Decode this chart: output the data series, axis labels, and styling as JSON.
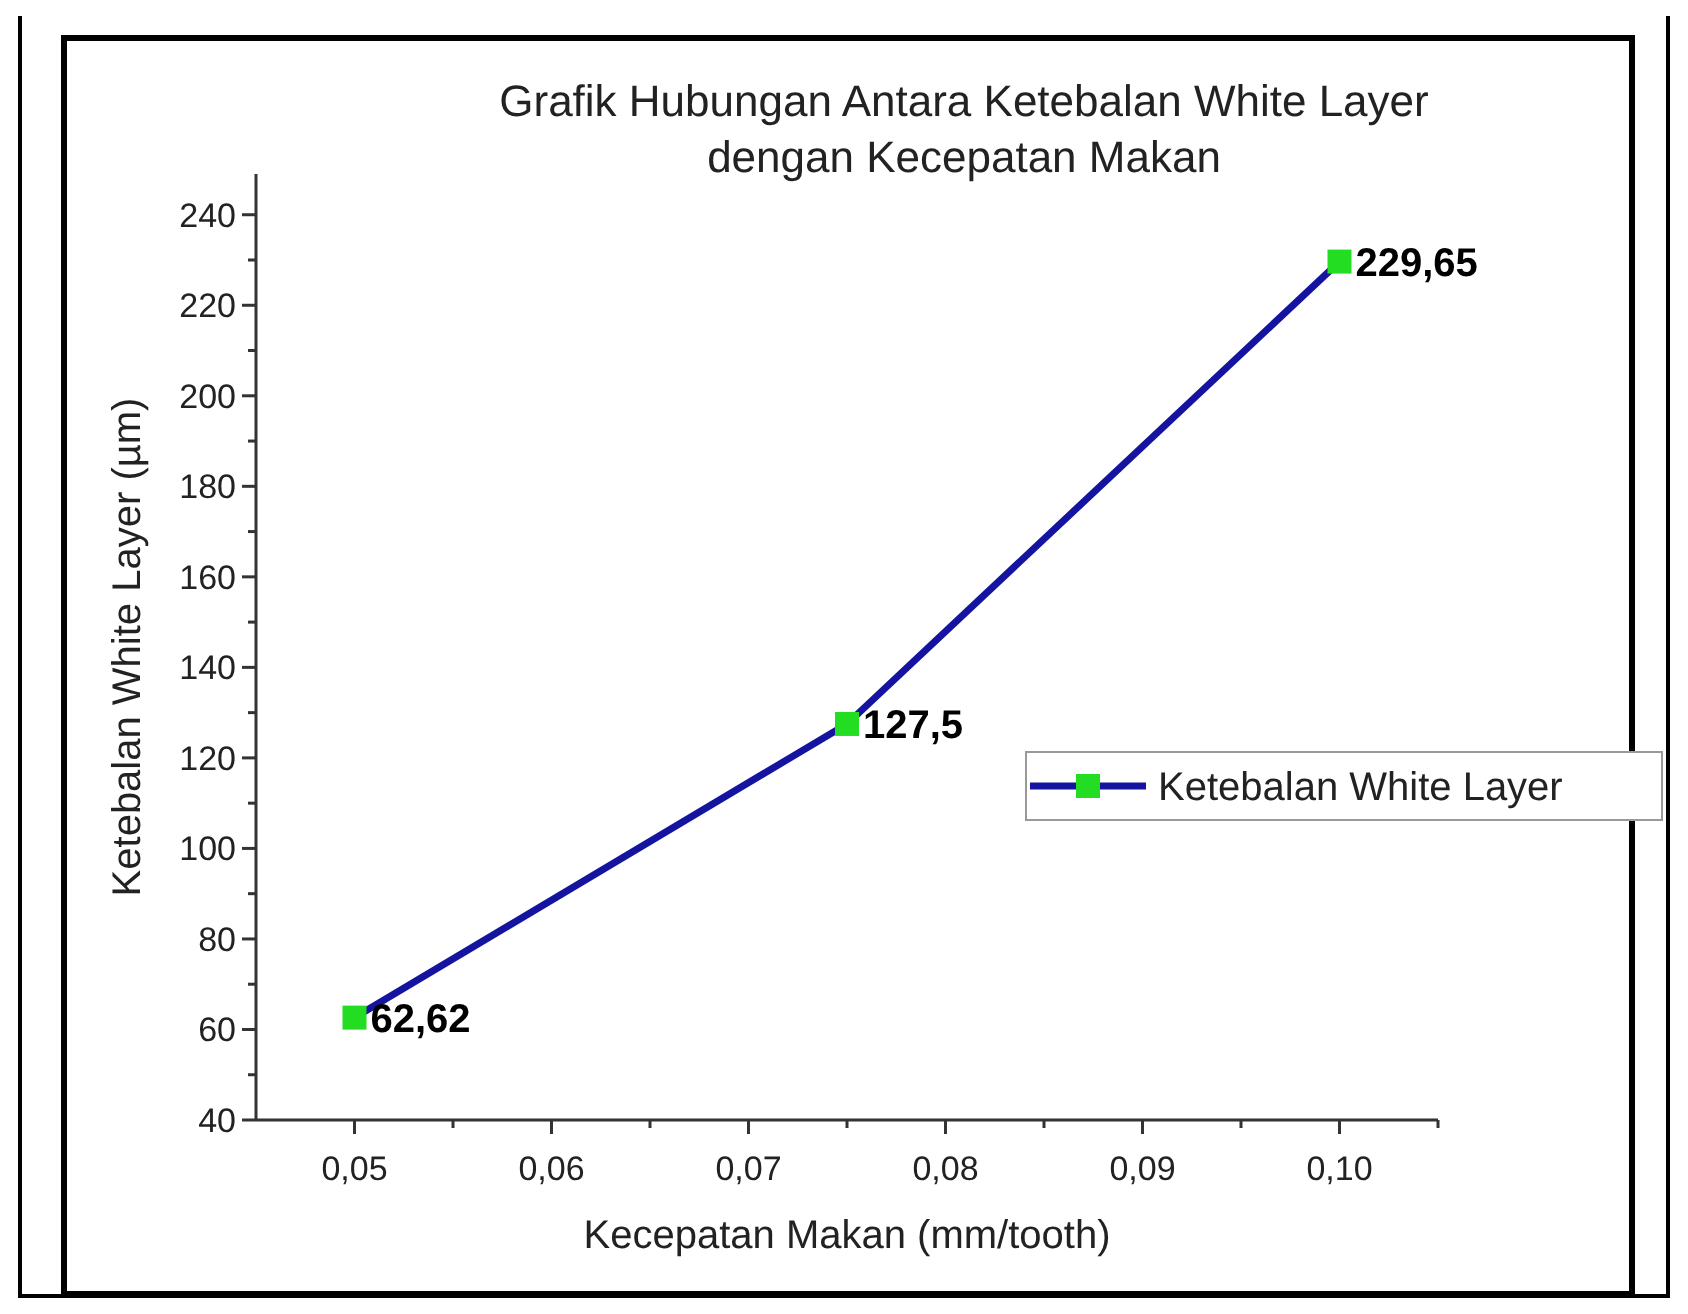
{
  "chart_data": {
    "type": "line",
    "title": "Grafik Hubungan Antara Ketebalan White Layer\ndengan Kecepatan Makan",
    "xlabel": "Kecepatan Makan (mm/tooth)",
    "ylabel": "Ketebalan White Layer (µm)",
    "x": [
      0.05,
      0.075,
      0.1
    ],
    "series": [
      {
        "name": "Ketebalan White Layer",
        "color": "#1414a0",
        "values": [
          62.62,
          127.5,
          229.65
        ],
        "value_labels": [
          "62,62",
          "127,5",
          "229,65"
        ]
      }
    ],
    "marker": "square",
    "legend": "right",
    "xlim": [
      0.045,
      0.105
    ],
    "xticks": [
      {
        "value": 0.05,
        "label": "0,05"
      },
      {
        "value": 0.055,
        "label": null
      },
      {
        "value": 0.06,
        "label": "0,06"
      },
      {
        "value": 0.065,
        "label": null
      },
      {
        "value": 0.07,
        "label": "0,07"
      },
      {
        "value": 0.075,
        "label": null
      },
      {
        "value": 0.08,
        "label": "0,08"
      },
      {
        "value": 0.085,
        "label": null
      },
      {
        "value": 0.09,
        "label": "0,09"
      },
      {
        "value": 0.095,
        "label": null
      },
      {
        "value": 0.1,
        "label": "0,10"
      },
      {
        "value": 0.105,
        "label": null
      }
    ],
    "ylim": [
      40,
      249
    ],
    "yticks": [
      40,
      {
        "value": 50,
        "label": null
      },
      60,
      {
        "value": 70,
        "label": null
      },
      80,
      {
        "value": 90,
        "label": null
      },
      100,
      {
        "value": 110,
        "label": null
      },
      120,
      {
        "value": 130,
        "label": null
      },
      140,
      {
        "value": 150,
        "label": null
      },
      160,
      {
        "value": 170,
        "label": null
      },
      180,
      {
        "value": 190,
        "label": null
      },
      200,
      {
        "value": 210,
        "label": null
      },
      220,
      {
        "value": 230,
        "label": null
      },
      240
    ]
  }
}
